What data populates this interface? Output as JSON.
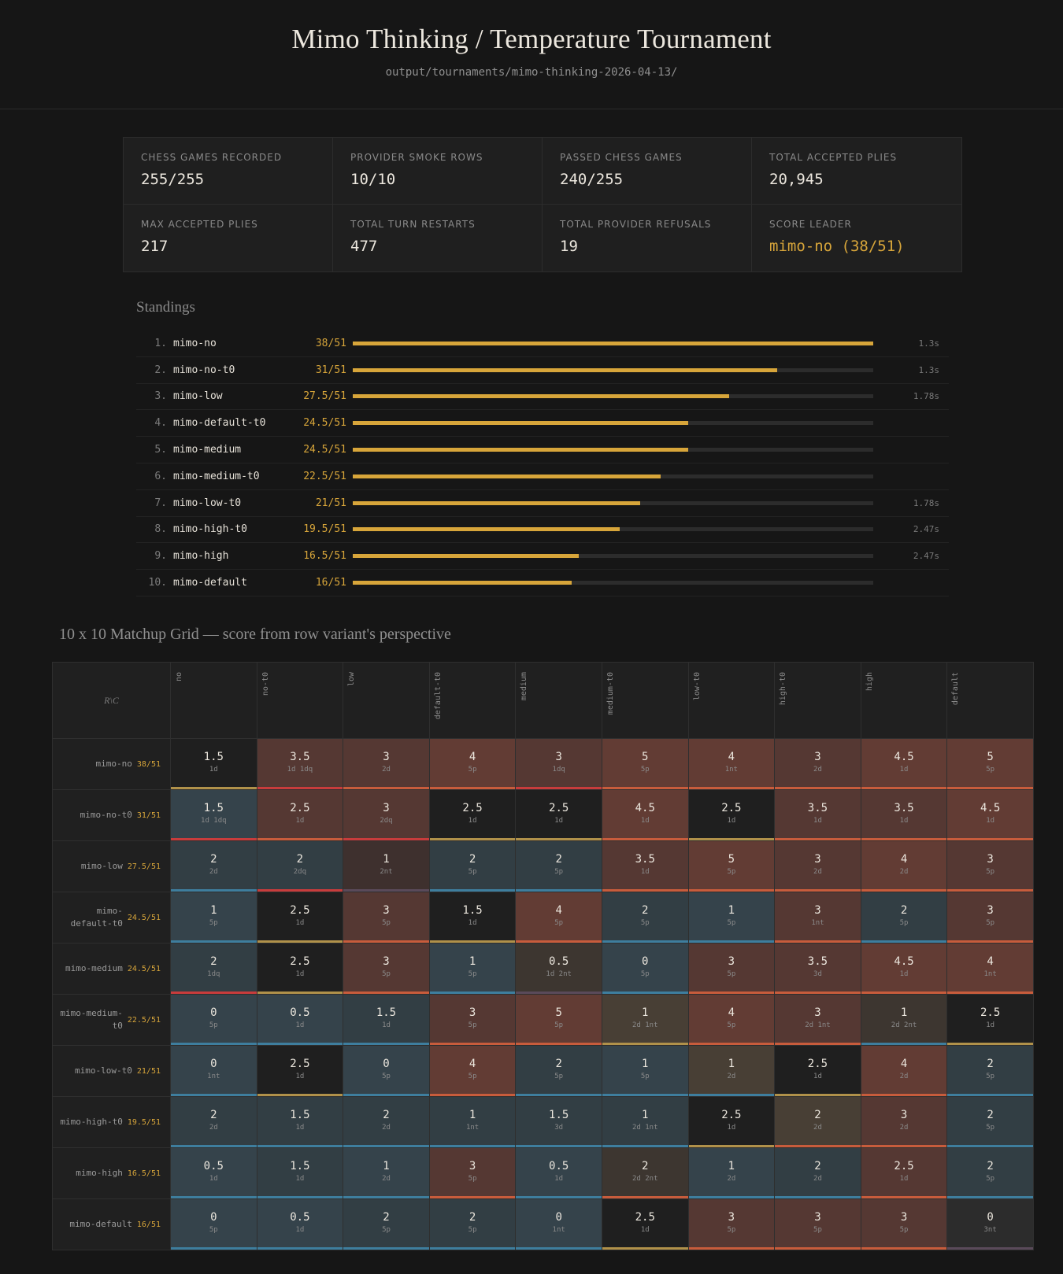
{
  "header": {
    "title": "Mimo Thinking / Temperature Tournament",
    "path": "output/tournaments/mimo-thinking-2026-04-13/"
  },
  "stats": [
    {
      "label": "CHESS GAMES RECORDED",
      "value": "255/255",
      "accent": false
    },
    {
      "label": "PROVIDER SMOKE ROWS",
      "value": "10/10",
      "accent": false
    },
    {
      "label": "PASSED CHESS GAMES",
      "value": "240/255",
      "accent": false
    },
    {
      "label": "TOTAL ACCEPTED PLIES",
      "value": "20,945",
      "accent": false
    },
    {
      "label": "MAX ACCEPTED PLIES",
      "value": "217",
      "accent": false
    },
    {
      "label": "TOTAL TURN RESTARTS",
      "value": "477",
      "accent": false
    },
    {
      "label": "TOTAL PROVIDER REFUSALS",
      "value": "19",
      "accent": false
    },
    {
      "label": "SCORE LEADER",
      "value": "mimo-no (38/51)",
      "accent": true
    }
  ],
  "standings": {
    "title": "Standings",
    "max_score": 38,
    "rows": [
      {
        "rank": "1.",
        "name": "mimo-no",
        "score": 38,
        "score_label": "38/51",
        "time": "1.3s"
      },
      {
        "rank": "2.",
        "name": "mimo-no-t0",
        "score": 31,
        "score_label": "31/51",
        "time": "1.3s"
      },
      {
        "rank": "3.",
        "name": "mimo-low",
        "score": 27.5,
        "score_label": "27.5/51",
        "time": "1.78s"
      },
      {
        "rank": "4.",
        "name": "mimo-default-t0",
        "score": 24.5,
        "score_label": "24.5/51",
        "time": ""
      },
      {
        "rank": "5.",
        "name": "mimo-medium",
        "score": 24.5,
        "score_label": "24.5/51",
        "time": ""
      },
      {
        "rank": "6.",
        "name": "mimo-medium-t0",
        "score": 22.5,
        "score_label": "22.5/51",
        "time": ""
      },
      {
        "rank": "7.",
        "name": "mimo-low-t0",
        "score": 21,
        "score_label": "21/51",
        "time": "1.78s"
      },
      {
        "rank": "8.",
        "name": "mimo-high-t0",
        "score": 19.5,
        "score_label": "19.5/51",
        "time": "2.47s"
      },
      {
        "rank": "9.",
        "name": "mimo-high",
        "score": 16.5,
        "score_label": "16.5/51",
        "time": "2.47s"
      },
      {
        "rank": "10.",
        "name": "mimo-default",
        "score": 16,
        "score_label": "16/51",
        "time": ""
      }
    ]
  },
  "matchup": {
    "title": "10 x 10 Matchup Grid — score from row variant's perspective",
    "corner": "R\\C",
    "columns": [
      "no",
      "no-t0",
      "low",
      "default-t0",
      "medium",
      "medium-t0",
      "low-t0",
      "high-t0",
      "high",
      "default"
    ],
    "rows": [
      {
        "name": "mimo-no",
        "score": "38/51",
        "cells": [
          {
            "v": "1.5",
            "s": "1d",
            "bg": "even",
            "strip": "draw"
          },
          {
            "v": "3.5",
            "s": "1d 1dq",
            "bg": "win",
            "strip": "dq"
          },
          {
            "v": "3",
            "s": "2d",
            "bg": "win",
            "strip": "win"
          },
          {
            "v": "4",
            "s": "5p",
            "bg": "winbig",
            "strip": "win"
          },
          {
            "v": "3",
            "s": "1dq",
            "bg": "win",
            "strip": "dq"
          },
          {
            "v": "5",
            "s": "5p",
            "bg": "winbig",
            "strip": "win"
          },
          {
            "v": "4",
            "s": "1nt",
            "bg": "winbig",
            "strip": "win"
          },
          {
            "v": "3",
            "s": "2d",
            "bg": "win",
            "strip": "win"
          },
          {
            "v": "4.5",
            "s": "1d",
            "bg": "winbig",
            "strip": "win"
          },
          {
            "v": "5",
            "s": "5p",
            "bg": "winbig",
            "strip": "win"
          }
        ]
      },
      {
        "name": "mimo-no-t0",
        "score": "31/51",
        "cells": [
          {
            "v": "1.5",
            "s": "1d 1dq",
            "bg": "loss",
            "strip": "dq"
          },
          {
            "v": "2.5",
            "s": "1d",
            "bg": "win",
            "strip": "win"
          },
          {
            "v": "3",
            "s": "2dq",
            "bg": "win",
            "strip": "dq"
          },
          {
            "v": "2.5",
            "s": "1d",
            "bg": "even",
            "strip": "draw"
          },
          {
            "v": "2.5",
            "s": "1d",
            "bg": "even",
            "strip": "draw"
          },
          {
            "v": "4.5",
            "s": "1d",
            "bg": "winbig",
            "strip": "win"
          },
          {
            "v": "2.5",
            "s": "1d",
            "bg": "even",
            "strip": "draw"
          },
          {
            "v": "3.5",
            "s": "1d",
            "bg": "win",
            "strip": "win"
          },
          {
            "v": "3.5",
            "s": "1d",
            "bg": "win",
            "strip": "win"
          },
          {
            "v": "4.5",
            "s": "1d",
            "bg": "winbig",
            "strip": "win"
          }
        ]
      },
      {
        "name": "mimo-low",
        "score": "27.5/51",
        "cells": [
          {
            "v": "2",
            "s": "2d",
            "bg": "lossd",
            "strip": "loss"
          },
          {
            "v": "2",
            "s": "2dq",
            "bg": "lossd",
            "strip": "dq"
          },
          {
            "v": "1",
            "s": "2nt",
            "bg": "mix",
            "strip": "nt"
          },
          {
            "v": "2",
            "s": "5p",
            "bg": "lossd",
            "strip": "loss"
          },
          {
            "v": "2",
            "s": "5p",
            "bg": "lossd",
            "strip": "loss"
          },
          {
            "v": "3.5",
            "s": "1d",
            "bg": "win",
            "strip": "win"
          },
          {
            "v": "5",
            "s": "5p",
            "bg": "winbig",
            "strip": "win"
          },
          {
            "v": "3",
            "s": "2d",
            "bg": "win",
            "strip": "win"
          },
          {
            "v": "4",
            "s": "2d",
            "bg": "winbig",
            "strip": "win"
          },
          {
            "v": "3",
            "s": "5p",
            "bg": "win",
            "strip": "win"
          }
        ]
      },
      {
        "name": "mimo-default-t0",
        "score": "24.5/51",
        "cells": [
          {
            "v": "1",
            "s": "5p",
            "bg": "loss",
            "strip": "loss"
          },
          {
            "v": "2.5",
            "s": "1d",
            "bg": "even",
            "strip": "draw"
          },
          {
            "v": "3",
            "s": "5p",
            "bg": "win",
            "strip": "win"
          },
          {
            "v": "1.5",
            "s": "1d",
            "bg": "even",
            "strip": "draw"
          },
          {
            "v": "4",
            "s": "5p",
            "bg": "winbig",
            "strip": "win"
          },
          {
            "v": "2",
            "s": "5p",
            "bg": "lossd",
            "strip": "loss"
          },
          {
            "v": "1",
            "s": "5p",
            "bg": "loss",
            "strip": "loss"
          },
          {
            "v": "3",
            "s": "1nt",
            "bg": "win",
            "strip": "win"
          },
          {
            "v": "2",
            "s": "5p",
            "bg": "lossd",
            "strip": "loss"
          },
          {
            "v": "3",
            "s": "5p",
            "bg": "win",
            "strip": "win"
          }
        ]
      },
      {
        "name": "mimo-medium",
        "score": "24.5/51",
        "cells": [
          {
            "v": "2",
            "s": "1dq",
            "bg": "lossd",
            "strip": "dq"
          },
          {
            "v": "2.5",
            "s": "1d",
            "bg": "even",
            "strip": "draw"
          },
          {
            "v": "3",
            "s": "5p",
            "bg": "win",
            "strip": "win"
          },
          {
            "v": "1",
            "s": "5p",
            "bg": "loss",
            "strip": "loss"
          },
          {
            "v": "0.5",
            "s": "1d 2nt",
            "bg": "drawd",
            "strip": "nt"
          },
          {
            "v": "0",
            "s": "5p",
            "bg": "loss",
            "strip": "loss"
          },
          {
            "v": "3",
            "s": "5p",
            "bg": "win",
            "strip": "win"
          },
          {
            "v": "3.5",
            "s": "3d",
            "bg": "win",
            "strip": "win"
          },
          {
            "v": "4.5",
            "s": "1d",
            "bg": "winbig",
            "strip": "win"
          },
          {
            "v": "4",
            "s": "1nt",
            "bg": "winbig",
            "strip": "win"
          }
        ]
      },
      {
        "name": "mimo-medium-t0",
        "score": "22.5/51",
        "cells": [
          {
            "v": "0",
            "s": "5p",
            "bg": "loss",
            "strip": "loss"
          },
          {
            "v": "0.5",
            "s": "1d",
            "bg": "loss",
            "strip": "loss"
          },
          {
            "v": "1.5",
            "s": "1d",
            "bg": "lossd",
            "strip": "loss"
          },
          {
            "v": "3",
            "s": "5p",
            "bg": "win",
            "strip": "win"
          },
          {
            "v": "5",
            "s": "5p",
            "bg": "winbig",
            "strip": "win"
          },
          {
            "v": "1",
            "s": "2d 1nt",
            "bg": "draw",
            "strip": "draw"
          },
          {
            "v": "4",
            "s": "5p",
            "bg": "winbig",
            "strip": "win"
          },
          {
            "v": "3",
            "s": "2d 1nt",
            "bg": "win",
            "strip": "win"
          },
          {
            "v": "1",
            "s": "2d 2nt",
            "bg": "drawd",
            "strip": "loss"
          },
          {
            "v": "2.5",
            "s": "1d",
            "bg": "even",
            "strip": "draw"
          }
        ]
      },
      {
        "name": "mimo-low-t0",
        "score": "21/51",
        "cells": [
          {
            "v": "0",
            "s": "1nt",
            "bg": "loss",
            "strip": "loss"
          },
          {
            "v": "2.5",
            "s": "1d",
            "bg": "even",
            "strip": "draw"
          },
          {
            "v": "0",
            "s": "5p",
            "bg": "loss",
            "strip": "loss"
          },
          {
            "v": "4",
            "s": "5p",
            "bg": "winbig",
            "strip": "win"
          },
          {
            "v": "2",
            "s": "5p",
            "bg": "lossd",
            "strip": "loss"
          },
          {
            "v": "1",
            "s": "5p",
            "bg": "loss",
            "strip": "loss"
          },
          {
            "v": "1",
            "s": "2d",
            "bg": "draw",
            "strip": "loss"
          },
          {
            "v": "2.5",
            "s": "1d",
            "bg": "even",
            "strip": "draw"
          },
          {
            "v": "4",
            "s": "2d",
            "bg": "winbig",
            "strip": "win"
          },
          {
            "v": "2",
            "s": "5p",
            "bg": "lossd",
            "strip": "loss"
          }
        ]
      },
      {
        "name": "mimo-high-t0",
        "score": "19.5/51",
        "cells": [
          {
            "v": "2",
            "s": "2d",
            "bg": "lossd",
            "strip": "loss"
          },
          {
            "v": "1.5",
            "s": "1d",
            "bg": "lossd",
            "strip": "loss"
          },
          {
            "v": "2",
            "s": "2d",
            "bg": "lossd",
            "strip": "loss"
          },
          {
            "v": "1",
            "s": "1nt",
            "bg": "lossd",
            "strip": "loss"
          },
          {
            "v": "1.5",
            "s": "3d",
            "bg": "lossd",
            "strip": "loss"
          },
          {
            "v": "1",
            "s": "2d 1nt",
            "bg": "lossd",
            "strip": "loss"
          },
          {
            "v": "2.5",
            "s": "1d",
            "bg": "even",
            "strip": "draw"
          },
          {
            "v": "2",
            "s": "2d",
            "bg": "draw",
            "strip": "win"
          },
          {
            "v": "3",
            "s": "2d",
            "bg": "win",
            "strip": "win"
          },
          {
            "v": "2",
            "s": "5p",
            "bg": "lossd",
            "strip": "loss"
          }
        ]
      },
      {
        "name": "mimo-high",
        "score": "16.5/51",
        "cells": [
          {
            "v": "0.5",
            "s": "1d",
            "bg": "loss",
            "strip": "loss"
          },
          {
            "v": "1.5",
            "s": "1d",
            "bg": "lossd",
            "strip": "loss"
          },
          {
            "v": "1",
            "s": "2d",
            "bg": "loss",
            "strip": "loss"
          },
          {
            "v": "3",
            "s": "5p",
            "bg": "win",
            "strip": "win"
          },
          {
            "v": "0.5",
            "s": "1d",
            "bg": "loss",
            "strip": "loss"
          },
          {
            "v": "2",
            "s": "2d 2nt",
            "bg": "drawd",
            "strip": "win"
          },
          {
            "v": "1",
            "s": "2d",
            "bg": "loss",
            "strip": "loss"
          },
          {
            "v": "2",
            "s": "2d",
            "bg": "lossd",
            "strip": "loss"
          },
          {
            "v": "2.5",
            "s": "1d",
            "bg": "win",
            "strip": "win"
          },
          {
            "v": "2",
            "s": "5p",
            "bg": "lossd",
            "strip": "loss"
          }
        ]
      },
      {
        "name": "mimo-default",
        "score": "16/51",
        "cells": [
          {
            "v": "0",
            "s": "5p",
            "bg": "loss",
            "strip": "loss"
          },
          {
            "v": "0.5",
            "s": "1d",
            "bg": "loss",
            "strip": "loss"
          },
          {
            "v": "2",
            "s": "5p",
            "bg": "lossd",
            "strip": "loss"
          },
          {
            "v": "2",
            "s": "5p",
            "bg": "lossd",
            "strip": "loss"
          },
          {
            "v": "0",
            "s": "1nt",
            "bg": "loss",
            "strip": "loss"
          },
          {
            "v": "2.5",
            "s": "1d",
            "bg": "even",
            "strip": "draw"
          },
          {
            "v": "3",
            "s": "5p",
            "bg": "win",
            "strip": "win"
          },
          {
            "v": "3",
            "s": "5p",
            "bg": "win",
            "strip": "win"
          },
          {
            "v": "3",
            "s": "5p",
            "bg": "win",
            "strip": "win"
          },
          {
            "v": "0",
            "s": "3nt",
            "bg": "nt",
            "strip": "nt"
          }
        ]
      }
    ]
  }
}
